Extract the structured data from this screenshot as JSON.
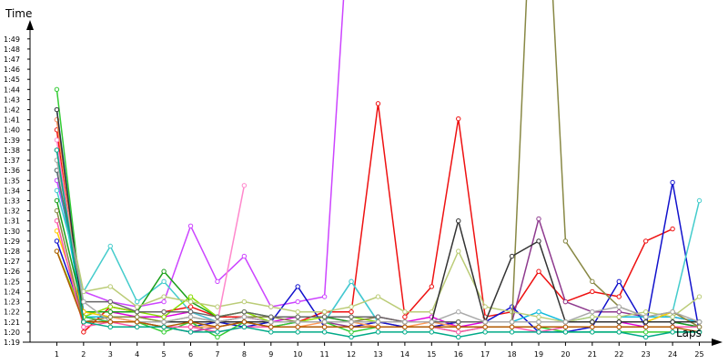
{
  "chart_data": {
    "type": "line",
    "xlabel": "Laps",
    "ylabel": "Time",
    "x": [
      1,
      2,
      3,
      4,
      5,
      6,
      7,
      8,
      9,
      10,
      11,
      12,
      13,
      14,
      15,
      16,
      17,
      18,
      19,
      20,
      21,
      22,
      23,
      24,
      25
    ],
    "xlim": [
      0,
      25.9
    ],
    "ylim": [
      79,
      110.6
    ],
    "y_ticks": [
      {
        "v": 79,
        "label": "1:19"
      },
      {
        "v": 80,
        "label": "1:20"
      },
      {
        "v": 81,
        "label": "1:21"
      },
      {
        "v": 82,
        "label": "1:22"
      },
      {
        "v": 83,
        "label": "1:23"
      },
      {
        "v": 84,
        "label": "1:24"
      },
      {
        "v": 85,
        "label": "1:25"
      },
      {
        "v": 86,
        "label": "1:26"
      },
      {
        "v": 87,
        "label": "1:27"
      },
      {
        "v": 88,
        "label": "1:28"
      },
      {
        "v": 89,
        "label": "1:29"
      },
      {
        "v": 90,
        "label": "1:30"
      },
      {
        "v": 91,
        "label": "1:31"
      },
      {
        "v": 92,
        "label": "1:32"
      },
      {
        "v": 93,
        "label": "1:33"
      },
      {
        "v": 94,
        "label": "1:34"
      },
      {
        "v": 95,
        "label": "1:35"
      },
      {
        "v": 96,
        "label": "1:36"
      },
      {
        "v": 97,
        "label": "1:37"
      },
      {
        "v": 98,
        "label": "1:38"
      },
      {
        "v": 99,
        "label": "1:39"
      },
      {
        "v": 100,
        "label": "1:40"
      },
      {
        "v": 101,
        "label": "1:41"
      },
      {
        "v": 102,
        "label": "1:42"
      },
      {
        "v": 103,
        "label": "1:43"
      },
      {
        "v": 104,
        "label": "1:44"
      },
      {
        "v": 105,
        "label": "1:45"
      },
      {
        "v": 106,
        "label": "1:46"
      },
      {
        "v": 107,
        "label": "1:47"
      },
      {
        "v": 108,
        "label": "1:48"
      },
      {
        "v": 109,
        "label": "1:49"
      }
    ],
    "x_ticks": [
      "1",
      "2",
      "3",
      "4",
      "5",
      "6",
      "7",
      "8",
      "9",
      "10",
      "11",
      "12",
      "13",
      "14",
      "15",
      "16",
      "17",
      "18",
      "19",
      "20",
      "21",
      "22",
      "23",
      "24",
      "25"
    ],
    "grid": false,
    "legend": "none",
    "series": [
      {
        "color": "#ee1111",
        "values": [
          100,
          80,
          82.5,
          82,
          82,
          82.5,
          81.5,
          81.5,
          81,
          81,
          82,
          82,
          102.6,
          81.5,
          84.5,
          101.1,
          81.5,
          82,
          86,
          83,
          84,
          83.5,
          89,
          90.2,
          null
        ]
      },
      {
        "color": "#dd00dd",
        "values": [
          101,
          82,
          82,
          81.5,
          81.5,
          82,
          81,
          81.5,
          81,
          81.5,
          81.5,
          81,
          81.5,
          81,
          81.5,
          80.5,
          81,
          81,
          81,
          81,
          81,
          81,
          80.5,
          80.5,
          null
        ]
      },
      {
        "color": "#cc44ff",
        "values": [
          95,
          84,
          83,
          82.5,
          83,
          90.5,
          85,
          87.5,
          82.5,
          83,
          83.5,
          125,
          null,
          null,
          null,
          null,
          null,
          null,
          null,
          null,
          null,
          null,
          null,
          null,
          null
        ]
      },
      {
        "color": "#8e3a8e",
        "values": [
          98,
          81,
          81,
          81,
          80.5,
          80,
          80.5,
          81,
          80.5,
          81,
          81,
          80.5,
          81,
          80.5,
          80.5,
          81,
          81,
          81,
          91.2,
          83,
          82,
          82,
          81.5,
          81.5,
          81
        ]
      },
      {
        "color": "#1111cc",
        "values": [
          89,
          81.5,
          81,
          81,
          80.5,
          80.5,
          81,
          80.5,
          81,
          84.5,
          80.5,
          80.5,
          81,
          80.5,
          80.5,
          81,
          81,
          82.5,
          80,
          80,
          80.5,
          85,
          80.5,
          94.8,
          80
        ]
      },
      {
        "color": "#3399ff",
        "values": [
          102,
          82,
          81.5,
          81,
          81,
          81,
          81,
          81,
          81,
          81,
          81,
          85,
          81,
          81,
          81,
          81,
          81,
          81,
          81,
          81,
          81,
          81,
          81,
          81,
          80.5
        ]
      },
      {
        "color": "#11bbdd",
        "values": [
          96,
          81.5,
          81.5,
          81.5,
          81,
          81,
          81,
          81,
          81,
          81,
          81,
          81,
          81,
          81,
          81,
          81,
          81,
          81,
          82,
          81,
          81.5,
          81.5,
          81.5,
          81.5,
          81
        ]
      },
      {
        "color": "#44cccc",
        "values": [
          94,
          84,
          88.5,
          83,
          85,
          82,
          81,
          81,
          81,
          81,
          81,
          85,
          81,
          81,
          81,
          81,
          81,
          81,
          81,
          81,
          81,
          81,
          81,
          82,
          93
        ]
      },
      {
        "color": "#1aa01a",
        "values": [
          93,
          82,
          82,
          82,
          86,
          83,
          81.5,
          82,
          81.5,
          81.5,
          81.5,
          81,
          81,
          81,
          81,
          81,
          81,
          81,
          81,
          81,
          81,
          81,
          81,
          81,
          80.5
        ]
      },
      {
        "color": "#33cc33",
        "values": [
          104,
          81.5,
          81,
          81,
          80,
          81,
          79.5,
          81,
          80.5,
          81,
          81,
          80,
          80.5,
          80.5,
          80.5,
          80,
          80.5,
          80.5,
          80.5,
          80,
          80,
          80,
          80,
          80,
          80
        ]
      },
      {
        "color": "#88dd00",
        "values": [
          88,
          81.5,
          82.5,
          82,
          81.5,
          83.5,
          81.5,
          82,
          81,
          81,
          81.5,
          81.5,
          81,
          81,
          81,
          81,
          81,
          81,
          81,
          81,
          81,
          81,
          81,
          81,
          81
        ]
      },
      {
        "color": "#bbcc77",
        "values": [
          97,
          84,
          84.5,
          82.5,
          83.5,
          83,
          82.5,
          83,
          82.5,
          82,
          82,
          82.5,
          83.5,
          82,
          82,
          88,
          82.5,
          82,
          81.5,
          81,
          81.5,
          81.5,
          82,
          81.5,
          83.5
        ]
      },
      {
        "color": "#ffcc00",
        "values": [
          90,
          82,
          81.5,
          81.5,
          81,
          81,
          81,
          81,
          81,
          81,
          81,
          81,
          81,
          81,
          81,
          81,
          81,
          81,
          81,
          81,
          81,
          81,
          81,
          82,
          80.5
        ]
      },
      {
        "color": "#ff9955",
        "values": [
          101,
          81,
          81.5,
          81,
          80.5,
          80.5,
          80.5,
          81,
          80.5,
          80.5,
          81,
          81,
          80.5,
          80.5,
          81,
          80.5,
          80.5,
          80.5,
          80.5,
          80.5,
          80.5,
          80.5,
          80.5,
          80.5,
          80.5
        ]
      },
      {
        "color": "#ff88cc",
        "values": [
          99,
          81,
          81,
          81,
          81,
          81,
          81,
          94.5,
          null,
          null,
          null,
          null,
          null,
          null,
          null,
          null,
          null,
          null,
          null,
          null,
          null,
          null,
          null,
          null,
          null
        ]
      },
      {
        "color": "#ff55aa",
        "values": [
          91,
          80.5,
          81,
          80.5,
          80.5,
          80.5,
          80,
          80.5,
          80.5,
          80.5,
          80.5,
          80.5,
          80.5,
          80.5,
          80.5,
          80,
          80.5,
          80.5,
          80,
          80.5,
          80.5,
          80.5,
          80.5,
          80.5,
          80.5
        ]
      },
      {
        "color": "#888844",
        "values": [
          92,
          81,
          81.5,
          81.5,
          81,
          81.5,
          81,
          81.5,
          81.5,
          81,
          81,
          81,
          81.5,
          81,
          81,
          81,
          81,
          81,
          140,
          89,
          85,
          82.5,
          81.5,
          82,
          80.5
        ]
      },
      {
        "color": "#666666",
        "values": [
          96,
          83,
          83,
          82,
          82,
          82,
          81.5,
          82,
          81.5,
          81.5,
          81.5,
          81.5,
          81.5,
          81,
          81,
          81,
          81,
          81,
          81,
          81,
          81,
          81,
          81,
          81,
          81
        ]
      },
      {
        "color": "#333333",
        "values": [
          102,
          81,
          81,
          81,
          81,
          81,
          81,
          81,
          81,
          81,
          81,
          81,
          81,
          81,
          81,
          91,
          81,
          87.5,
          89,
          81,
          81,
          81,
          81,
          81,
          81
        ]
      },
      {
        "color": "#aaaaaa",
        "values": [
          97,
          83,
          81,
          81,
          81,
          81.5,
          81,
          81.5,
          81,
          81,
          81,
          81,
          81,
          81,
          81,
          82,
          81,
          81,
          81,
          81,
          82,
          82.5,
          81.5,
          82,
          81
        ]
      },
      {
        "color": "#b05a00",
        "values": [
          88,
          81,
          81,
          81,
          80.5,
          81,
          80.5,
          81,
          80.5,
          80.5,
          80.5,
          80.5,
          80.5,
          80.5,
          80.5,
          80.5,
          80.5,
          80.5,
          80.5,
          80.5,
          80.5,
          80.5,
          80.5,
          80.5,
          80
        ]
      },
      {
        "color": "#00aa88",
        "values": [
          98,
          81,
          80.5,
          80.5,
          80.5,
          80,
          80,
          80.5,
          80,
          80,
          80,
          79.5,
          80,
          80,
          80,
          79.5,
          80,
          80,
          80,
          80,
          80,
          80,
          79.5,
          80,
          80
        ]
      }
    ]
  }
}
